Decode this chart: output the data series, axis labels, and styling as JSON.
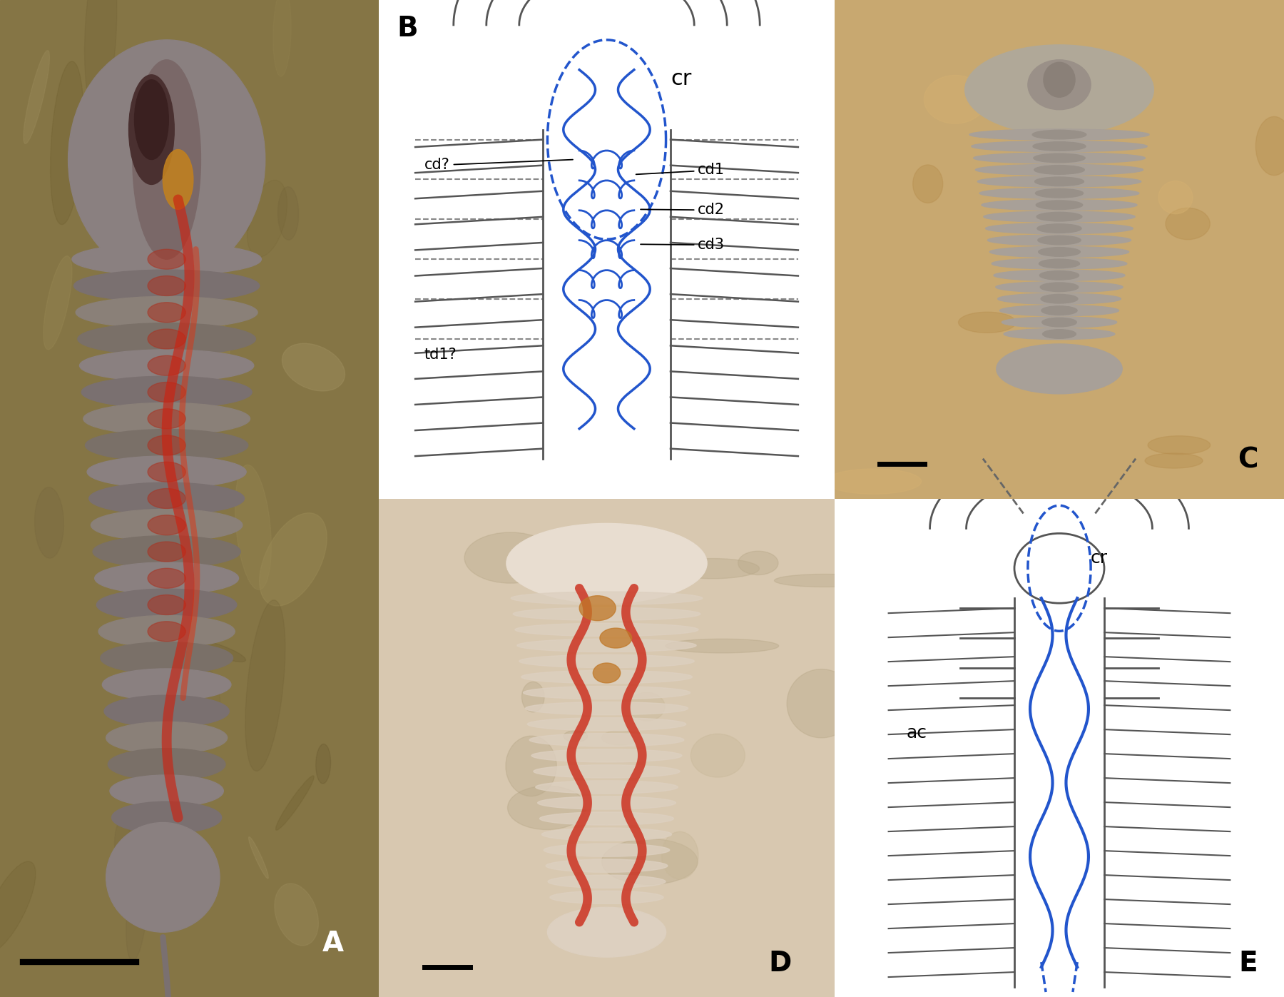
{
  "bg_color": "#ffffff",
  "label_fontsize": 28,
  "annotation_fontsize": 16,
  "blue_color": "#2255cc",
  "dark_gray": "#444444",
  "panel_A": {
    "label": "A",
    "bg_color": "#857545"
  },
  "panel_B": {
    "label": "B",
    "bg_color": "#ffffff",
    "annotations": [
      "cr",
      "cd?",
      "cd1",
      "cd2",
      "cd3",
      "td1?"
    ]
  },
  "panel_C": {
    "label": "C",
    "bg_color": "#c8a870"
  },
  "panel_D": {
    "label": "D",
    "bg_color": "#d0c0a0"
  },
  "panel_E": {
    "label": "E",
    "bg_color": "#ffffff",
    "annotations": [
      "cr",
      "ac"
    ]
  }
}
